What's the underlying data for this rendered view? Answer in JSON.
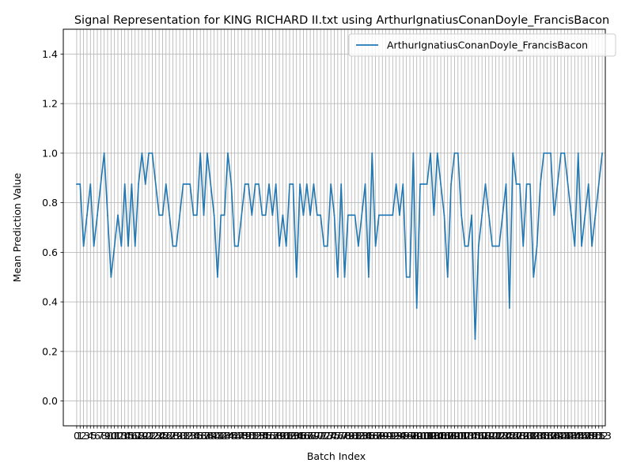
{
  "chart_data": {
    "type": "line",
    "title": "Signal Representation for KING RICHARD II.txt using ArthurIgnatiusConanDoyle_FrancisBacon",
    "xlabel": "Batch Index",
    "ylabel": "Mean Prediction Value",
    "xlim": [
      -3.9,
      153.9
    ],
    "ylim": [
      -0.1,
      1.5
    ],
    "yticks": [
      0.0,
      0.2,
      0.4,
      0.6,
      0.8,
      1.0,
      1.2,
      1.4
    ],
    "ytick_labels": [
      "0.0",
      "0.2",
      "0.4",
      "0.6",
      "0.8",
      "1.0",
      "1.2",
      "1.4"
    ],
    "grid": true,
    "legend_position": "top-right",
    "series": [
      {
        "name": "ArthurIgnatiusConanDoyle_FrancisBacon",
        "color": "#1f77b4",
        "values": [
          0.875,
          0.875,
          0.625,
          0.75,
          0.875,
          0.625,
          0.75,
          0.875,
          1.0,
          0.75,
          0.5,
          0.625,
          0.75,
          0.625,
          0.875,
          0.625,
          0.875,
          0.625,
          0.875,
          1.0,
          0.875,
          1.0,
          1.0,
          0.875,
          0.75,
          0.75,
          0.875,
          0.75,
          0.625,
          0.625,
          0.75,
          0.875,
          0.875,
          0.875,
          0.75,
          0.75,
          1.0,
          0.75,
          1.0,
          0.875,
          0.75,
          0.5,
          0.75,
          0.75,
          1.0,
          0.875,
          0.625,
          0.625,
          0.75,
          0.875,
          0.875,
          0.75,
          0.875,
          0.875,
          0.75,
          0.75,
          0.875,
          0.75,
          0.875,
          0.625,
          0.75,
          0.625,
          0.875,
          0.875,
          0.5,
          0.875,
          0.75,
          0.875,
          0.75,
          0.875,
          0.75,
          0.75,
          0.625,
          0.625,
          0.875,
          0.75,
          0.5,
          0.875,
          0.5,
          0.75,
          0.75,
          0.75,
          0.625,
          0.75,
          0.875,
          0.5,
          1.0,
          0.625,
          0.75,
          0.75,
          0.75,
          0.75,
          0.75,
          0.875,
          0.75,
          0.875,
          0.5,
          0.5,
          1.0,
          0.375,
          0.875,
          0.875,
          0.875,
          1.0,
          0.75,
          1.0,
          0.875,
          0.75,
          0.5,
          0.875,
          1.0,
          1.0,
          0.75,
          0.625,
          0.625,
          0.75,
          0.25,
          0.625,
          0.75,
          0.875,
          0.75,
          0.625,
          0.625,
          0.625,
          0.75,
          0.875,
          0.375,
          1.0,
          0.875,
          0.875,
          0.625,
          0.875,
          0.875,
          0.5,
          0.625,
          0.875,
          1.0,
          1.0,
          1.0,
          0.75,
          0.875,
          1.0,
          1.0,
          0.875,
          0.75,
          0.625,
          1.0,
          0.625,
          0.75,
          0.875,
          0.625,
          0.75,
          0.875,
          1.0
        ]
      }
    ],
    "x_tick_labels": [
      "0",
      "1",
      "2",
      "3",
      "4",
      "5",
      "6",
      "7",
      "8",
      "9",
      "10",
      "11",
      "12",
      "13",
      "14",
      "15",
      "16",
      "17",
      "18",
      "19",
      "20",
      "21",
      "22",
      "23",
      "24",
      "25",
      "26",
      "27",
      "28",
      "29",
      "30",
      "31",
      "32",
      "33",
      "34",
      "35",
      "36",
      "37",
      "38",
      "39",
      "40",
      "41",
      "42",
      "43",
      "44",
      "45",
      "46",
      "47",
      "48",
      "49",
      "50",
      "51",
      "52",
      "53",
      "54",
      "55",
      "56",
      "57",
      "58",
      "59",
      "60",
      "61",
      "62",
      "63",
      "64",
      "65",
      "66",
      "67",
      "68",
      "69",
      "70",
      "71",
      "72",
      "73",
      "74",
      "75",
      "76",
      "77",
      "78",
      "79",
      "80",
      "81",
      "82",
      "83",
      "84",
      "85",
      "86",
      "87",
      "88",
      "89",
      "90",
      "91",
      "92",
      "93",
      "94",
      "95",
      "96",
      "97",
      "98",
      "99",
      "100",
      "101",
      "102",
      "103",
      "104",
      "105",
      "106",
      "107",
      "108",
      "109",
      "110",
      "111",
      "112",
      "113",
      "114",
      "115",
      "116",
      "117",
      "118",
      "119",
      "120",
      "121",
      "122",
      "123",
      "124",
      "125",
      "126",
      "127",
      "128",
      "129",
      "130",
      "131",
      "132",
      "133",
      "134",
      "135",
      "136",
      "137",
      "138",
      "139",
      "140",
      "141",
      "142",
      "143",
      "144",
      "145",
      "146",
      "147",
      "148",
      "149",
      "150",
      "151",
      "152",
      "153"
    ]
  }
}
